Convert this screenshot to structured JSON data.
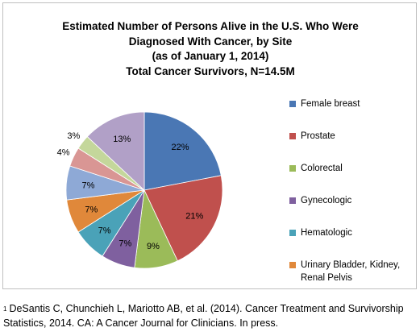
{
  "chart_data": {
    "type": "pie",
    "title_lines": [
      "Estimated Number of Persons Alive in the U.S. Who Were",
      "Diagnosed With Cancer, by Site",
      "(as of January 1, 2014)",
      "Total Cancer Survivors, N=14.5M"
    ],
    "slices": [
      {
        "name": "Female breast",
        "value": 22,
        "label": "22%",
        "color": "#4a77b4",
        "legend": true
      },
      {
        "name": "Prostate",
        "value": 21,
        "label": "21%",
        "color": "#c0504d",
        "legend": true
      },
      {
        "name": "Colorectal",
        "value": 9,
        "label": "9%",
        "color": "#9bbb59",
        "legend": true
      },
      {
        "name": "Gynecologic",
        "value": 7,
        "label": "7%",
        "color": "#7f609f",
        "legend": true
      },
      {
        "name": "Hematologic",
        "value": 7,
        "label": "7%",
        "color": "#4aa2b8",
        "legend": true
      },
      {
        "name": "Urinary Bladder, Kidney, Renal Pelvis",
        "value": 7,
        "label": "7%",
        "color": "#e0883a",
        "legend": true
      },
      {
        "name": "",
        "value": 7,
        "label": "7%",
        "color": "#8ea9d6",
        "legend": false
      },
      {
        "name": "",
        "value": 4,
        "label": "4%",
        "color": "#d99694",
        "legend": false
      },
      {
        "name": "",
        "value": 3,
        "label": "3%",
        "color": "#c4d79b",
        "legend": false
      },
      {
        "name": "",
        "value": 13,
        "label": "13%",
        "color": "#b1a0c7",
        "legend": false
      }
    ],
    "legend_position": "right"
  },
  "footnote": {
    "marker": "1",
    "text": "DeSantis C, Chunchieh L, Mariotto AB, et al. (2014).  Cancer Treatment and Survivorship Statistics, 2014. CA: A Cancer Journal for Clinicians. In press."
  }
}
